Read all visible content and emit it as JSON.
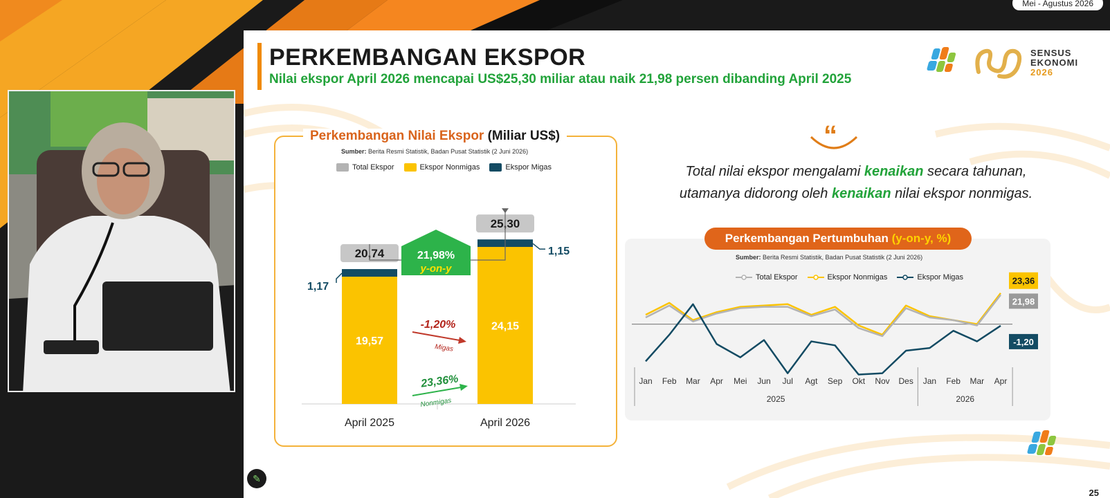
{
  "top_badge": "Mei - Agustus 2026",
  "slide": {
    "title": "PERKEMBANGAN EKSPOR",
    "subtitle": "Nilai ekspor April 2026 mencapai US$25,30 miliar atau naik 21,98 persen dibanding April 2025",
    "sensus": {
      "line1": "SENSUS",
      "line2": "EKONOMI",
      "year": "2026"
    },
    "page_number": "25"
  },
  "bar_card": {
    "title": "Perkembangan Nilai Ekspor",
    "unit": "(Miliar US$)",
    "source_bold": "Sumber:",
    "source": "Berita Resmi Statistik, Badan Pusat Statistik (2 Juni 2026)",
    "legend": [
      "Total Ekspor",
      "Ekspor Nonmigas",
      "Ekspor Migas"
    ],
    "growth_total": "21,98%",
    "growth_total_label": "y-on-y",
    "growth_migas": "-1,20%",
    "growth_migas_label": "Migas",
    "growth_nonmigas": "23,36%",
    "growth_nonmigas_label": "Nonmigas"
  },
  "quote": {
    "mark": "“",
    "line1_a": "Total nilai ekspor mengalami ",
    "line1_hl": "kenaikan",
    "line1_b": " secara tahunan,",
    "line2_a": "utamanya didorong oleh ",
    "line2_hl": "kenaikan",
    "line2_b": " nilai ekspor nonmigas."
  },
  "line_card": {
    "title": "Perkembangan Pertumbuhan",
    "title_unit": "(y-on-y, %)",
    "source_bold": "Sumber:",
    "source": "Berita Resmi Statistik, Badan Pusat Statistik (2 Juni 2026)",
    "legend": [
      "Total Ekspor",
      "Ekspor Nonmigas",
      "Ekspor Migas"
    ],
    "end_labels": {
      "nonmigas": "23,36",
      "total": "21,98",
      "migas": "-1,20"
    }
  },
  "colors": {
    "total": "#b3b3b3",
    "nonmigas": "#fbc300",
    "migas": "#134b63",
    "accent": "#e0651a",
    "green": "#22a33a"
  },
  "chart_data": [
    {
      "type": "bar",
      "title": "Perkembangan Nilai Ekspor (Miliar US$)",
      "categories": [
        "April 2025",
        "April 2026"
      ],
      "stacked": true,
      "series": [
        {
          "name": "Ekspor Nonmigas",
          "values": [
            19.57,
            24.15
          ]
        },
        {
          "name": "Ekspor Migas",
          "values": [
            1.17,
            1.15
          ]
        }
      ],
      "totals": [
        20.74,
        25.3
      ],
      "total_labels": [
        "20,74",
        "25,30"
      ],
      "nonmigas_labels": [
        "19,57",
        "24,15"
      ],
      "migas_labels": [
        "1,17",
        "1,15"
      ],
      "ylim": [
        0,
        30
      ]
    },
    {
      "type": "line",
      "title": "Perkembangan Pertumbuhan (y-on-y, %)",
      "x": [
        "Jan",
        "Feb",
        "Mar",
        "Apr",
        "Mei",
        "Jun",
        "Jul",
        "Agt",
        "Sep",
        "Okt",
        "Nov",
        "Des",
        "Jan",
        "Feb",
        "Mar",
        "Apr"
      ],
      "year_groups": [
        {
          "label": "2025",
          "span": 12
        },
        {
          "label": "2026",
          "span": 4
        }
      ],
      "series": [
        {
          "name": "Total Ekspor",
          "values": [
            5,
            14,
            2,
            8,
            12,
            13,
            13,
            6,
            11,
            -3,
            -9,
            12,
            5,
            3,
            -1,
            21.98
          ]
        },
        {
          "name": "Ekspor Nonmigas",
          "values": [
            7,
            16,
            3,
            9,
            13,
            14,
            15,
            7,
            13,
            -1,
            -8,
            14,
            6,
            3,
            0,
            23.36
          ]
        },
        {
          "name": "Ekspor Migas",
          "values": [
            -28,
            -8,
            15,
            -15,
            -25,
            -12,
            -37,
            -13,
            -16,
            -38,
            -37,
            -20,
            -18,
            -5,
            -13,
            -1.2
          ]
        }
      ],
      "ylim": [
        -45,
        30
      ]
    }
  ]
}
